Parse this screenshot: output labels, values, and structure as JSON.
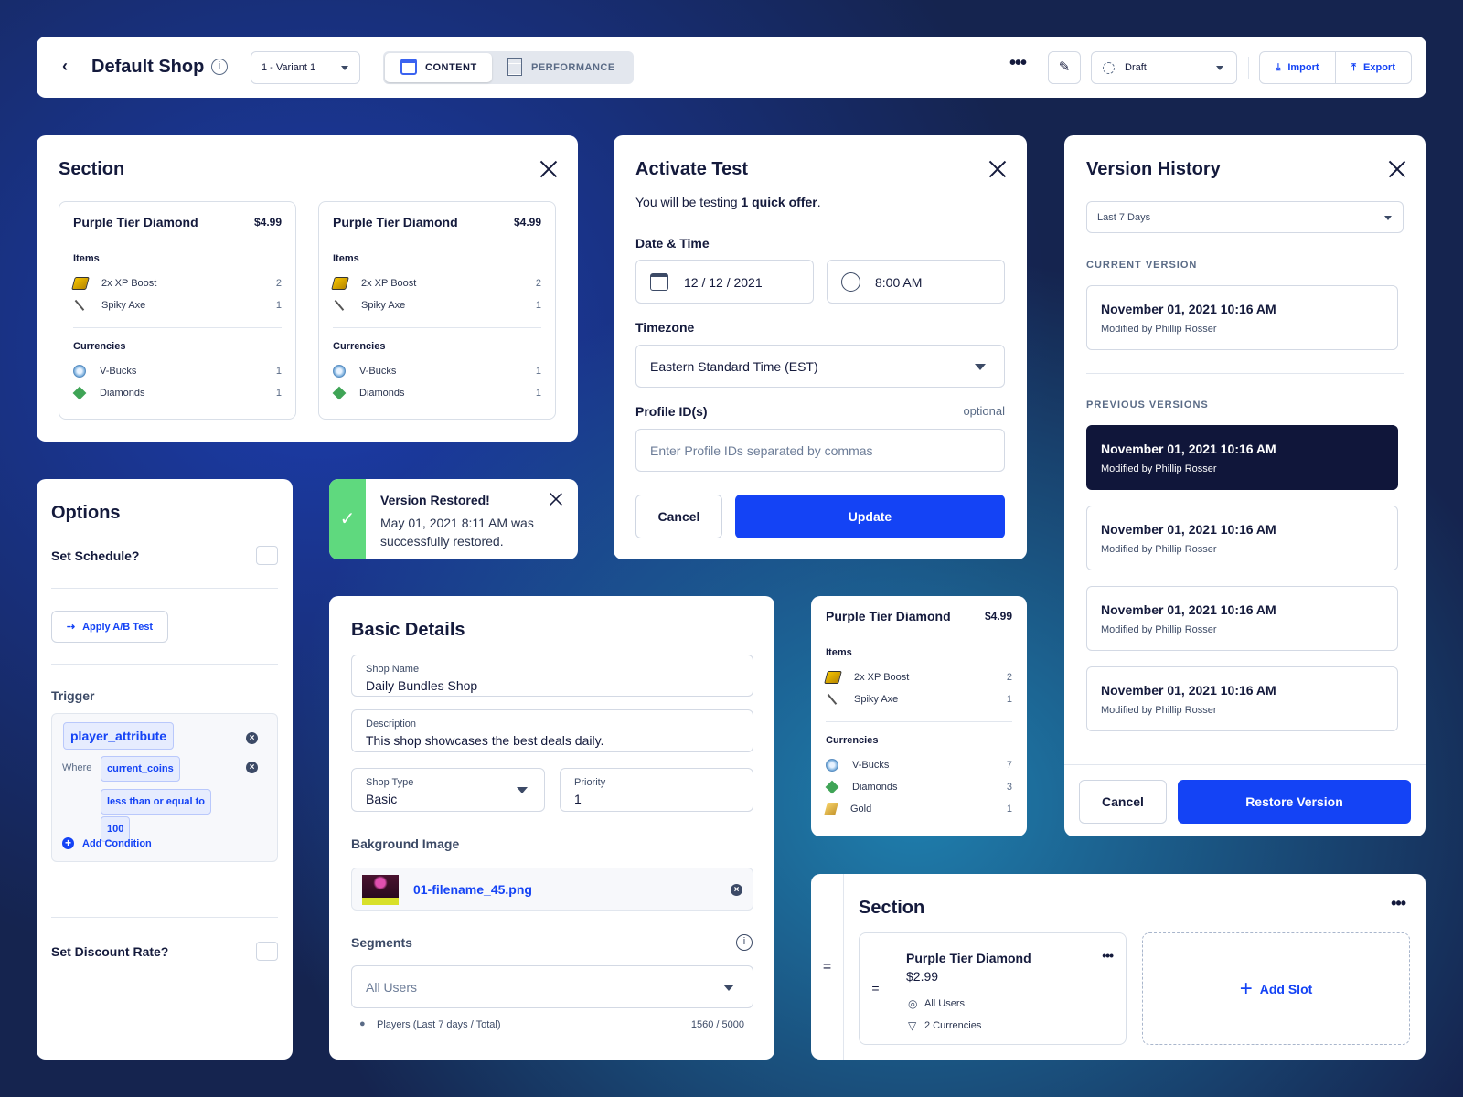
{
  "header": {
    "title": "Default Shop",
    "variant": "1 - Variant 1",
    "tabs": [
      {
        "label": "CONTENT"
      },
      {
        "label": "PERFORMANCE"
      }
    ],
    "status": "Draft",
    "import_label": "Import",
    "export_label": "Export"
  },
  "offer": {
    "title": "Purple Tier Diamond",
    "price": "$4.99",
    "items_label": "Items",
    "currencies_label": "Currencies",
    "items": [
      {
        "name": "2x XP Boost",
        "qty": "2",
        "icon": "boost"
      },
      {
        "name": "Spiky Axe",
        "qty": "1",
        "icon": "axe"
      }
    ],
    "currencies": [
      {
        "name": "V-Bucks",
        "qty": "1",
        "icon": "vbucks"
      },
      {
        "name": "Diamonds",
        "qty": "1",
        "icon": "diamond"
      }
    ]
  },
  "offer_small": {
    "title": "Purple Tier Diamond",
    "price": "$4.99",
    "items_label": "Items",
    "currencies_label": "Currencies",
    "items": [
      {
        "name": "2x XP Boost",
        "qty": "2",
        "icon": "boost"
      },
      {
        "name": "Spiky Axe",
        "qty": "1",
        "icon": "axe"
      }
    ],
    "currencies": [
      {
        "name": "V-Bucks",
        "qty": "7",
        "icon": "vbucks"
      },
      {
        "name": "Diamonds",
        "qty": "3",
        "icon": "diamond"
      },
      {
        "name": "Gold",
        "qty": "1",
        "icon": "gold"
      }
    ]
  },
  "section": {
    "title": "Section"
  },
  "activate": {
    "title": "Activate Test",
    "intro_prefix": "You will be testing ",
    "intro_bold": "1 quick offer",
    "intro_suffix": ".",
    "date_label": "Date & Time",
    "date": "12 / 12 / 2021",
    "time": "8:00 AM",
    "timezone_label": "Timezone",
    "timezone": "Eastern Standard Time (EST)",
    "profile_label": "Profile ID(s)",
    "optional": "optional",
    "profile_placeholder": "Enter Profile IDs separated by commas",
    "cancel": "Cancel",
    "update": "Update"
  },
  "history": {
    "title": "Version History",
    "range": "Last 7 Days",
    "current_label": "CURRENT VERSION",
    "previous_label": "PREVIOUS VERSIONS",
    "current": {
      "date": "November 01, 2021 10:16 AM",
      "by": "Modified by Phillip Rosser"
    },
    "previous": [
      {
        "date": "November 01, 2021 10:16 AM",
        "by": "Modified by Phillip Rosser"
      },
      {
        "date": "November 01, 2021 10:16 AM",
        "by": "Modified by Phillip Rosser"
      },
      {
        "date": "November 01, 2021 10:16 AM",
        "by": "Modified by Phillip Rosser"
      },
      {
        "date": "November 01, 2021 10:16 AM",
        "by": "Modified by Phillip Rosser"
      }
    ],
    "cancel": "Cancel",
    "restore": "Restore Version"
  },
  "options": {
    "title": "Options",
    "schedule": "Set Schedule?",
    "ab_test": "Apply A/B Test",
    "trigger": "Trigger",
    "attribute": "player_attribute",
    "where": "Where",
    "field": "current_coins",
    "operator": "less than or equal to",
    "value": "100",
    "add_condition": "Add Condition",
    "discount": "Set Discount Rate?"
  },
  "toast": {
    "title": "Version Restored!",
    "message": "May 01, 2021 8:11 AM was successfully restored."
  },
  "details": {
    "title": "Basic Details",
    "shop_name_label": "Shop Name",
    "shop_name": "Daily Bundles Shop",
    "description_label": "Description",
    "description": "This shop showcases the best deals daily.",
    "shop_type_label": "Shop Type",
    "shop_type": "Basic",
    "priority_label": "Priority",
    "priority": "1",
    "bg_label": "Bakground Image",
    "file": "01-filename_45.png",
    "segments_label": "Segments",
    "segment": "All Users",
    "players_label": "Players (Last 7 days / Total)",
    "players": "1560 / 5000"
  },
  "section2": {
    "title": "Section",
    "slot_title": "Purple Tier Diamond",
    "slot_price": "$2.99",
    "slot_users": "All Users",
    "slot_currencies": "2 Currencies",
    "add_slot": "Add Slot"
  }
}
